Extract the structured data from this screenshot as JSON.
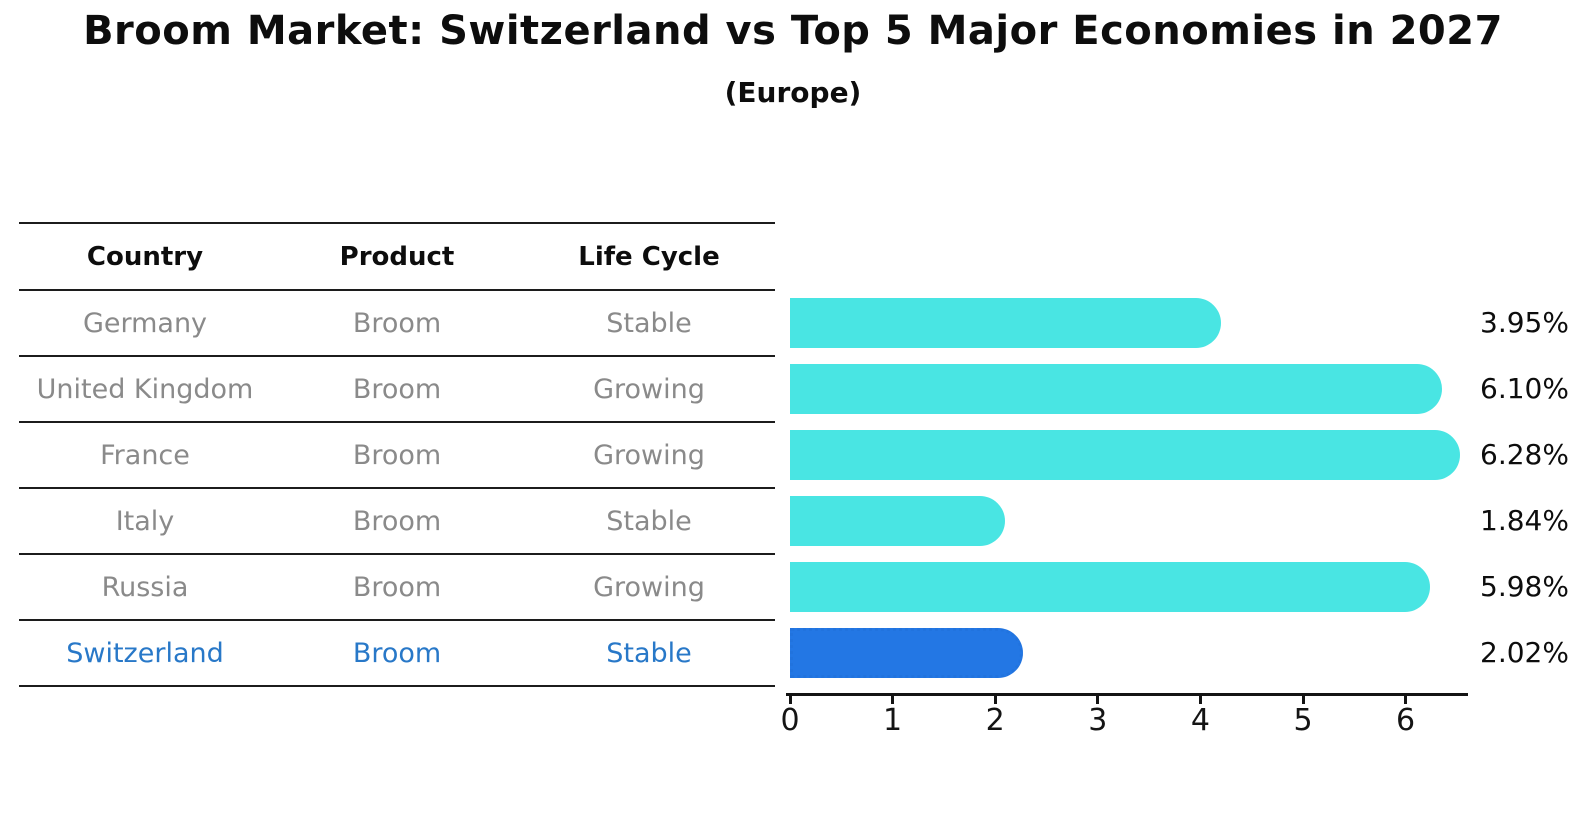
{
  "title": "Broom Market: Switzerland vs Top 5 Major Economies in 2027",
  "subtitle": "(Europe)",
  "table": {
    "headers": [
      "Country",
      "Product",
      "Life Cycle"
    ],
    "rows": [
      {
        "country": "Germany",
        "product": "Broom",
        "life_cycle": "Stable",
        "highlight": false
      },
      {
        "country": "United Kingdom",
        "product": "Broom",
        "life_cycle": "Growing",
        "highlight": false
      },
      {
        "country": "France",
        "product": "Broom",
        "life_cycle": "Growing",
        "highlight": false
      },
      {
        "country": "Italy",
        "product": "Broom",
        "life_cycle": "Stable",
        "highlight": false
      },
      {
        "country": "Russia",
        "product": "Broom",
        "life_cycle": "Growing",
        "highlight": true,
        "highlight_note": null
      },
      {
        "country": "Switzerland",
        "product": "Broom",
        "life_cycle": "Stable",
        "highlight": true
      }
    ]
  },
  "chart_data": {
    "type": "bar",
    "orientation": "horizontal",
    "title": "Broom Market: Switzerland vs Top 5 Major Economies in 2027",
    "subtitle": "(Europe)",
    "categories": [
      "Germany",
      "United Kingdom",
      "France",
      "Italy",
      "Russia",
      "Switzerland"
    ],
    "values": [
      3.95,
      6.1,
      6.28,
      1.84,
      5.98,
      2.02
    ],
    "value_labels": [
      "3.95%",
      "6.10%",
      "6.28%",
      "1.84%",
      "5.98%",
      "2.02%"
    ],
    "xticks": [
      0,
      1,
      2,
      3,
      4,
      5,
      6
    ],
    "xlim": [
      0,
      6.6
    ],
    "grid": false,
    "legend": null,
    "highlight_index": 5,
    "bar_color": "#49e5e3",
    "highlight_color": "#2377e4",
    "highlight_border_color": "#2173de",
    "text_gray": "#8a8a8a",
    "highlight_text_color": "#2878c8"
  }
}
